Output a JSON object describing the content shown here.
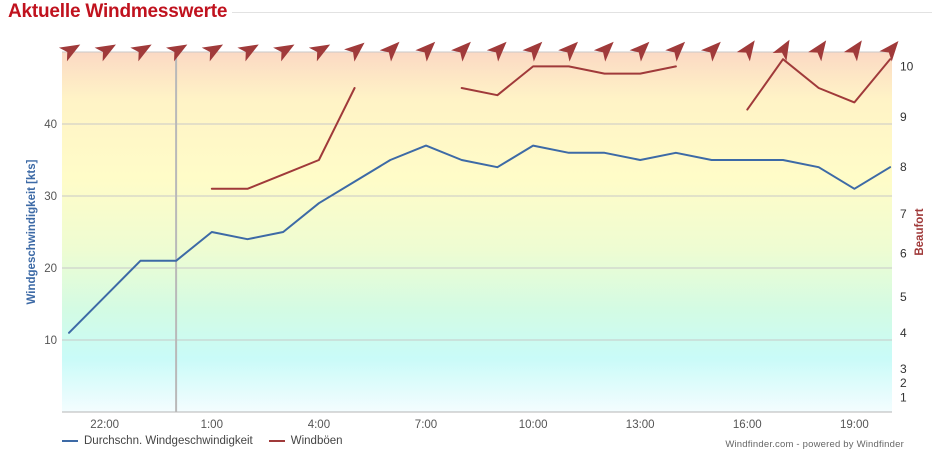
{
  "header": {
    "title": "Aktuelle Windmesswerte"
  },
  "credit": "Windfinder.com - powered by Windfinder",
  "colors": {
    "title": "#c0121e",
    "speed_line": "#3d6aa6",
    "gust_line": "#a03a3a",
    "arrow": "#a03a3a",
    "cursor_line": "#b9b9b9"
  },
  "chart_data": {
    "type": "line",
    "title": "",
    "x": [
      "21:00",
      "22:00",
      "23:00",
      "0:00",
      "1:00",
      "2:00",
      "3:00",
      "4:00",
      "5:00",
      "6:00",
      "7:00",
      "8:00",
      "9:00",
      "10:00",
      "11:00",
      "12:00",
      "13:00",
      "14:00",
      "15:00",
      "16:00",
      "17:00",
      "18:00",
      "19:00",
      "20:00"
    ],
    "x_tick_labels": [
      "22:00",
      "1:00",
      "4:00",
      "7:00",
      "10:00",
      "13:00",
      "16:00",
      "19:00"
    ],
    "ylabel": "Windgeschwindigkeit [kts]",
    "ylabel_right": "Beaufort",
    "ylim": [
      0,
      50
    ],
    "y_tick_labels": [
      "10",
      "20",
      "30",
      "40"
    ],
    "beaufort_scale": [
      {
        "label": "1",
        "kts": 2
      },
      {
        "label": "2",
        "kts": 4
      },
      {
        "label": "3",
        "kts": 6
      },
      {
        "label": "4",
        "kts": 11
      },
      {
        "label": "5",
        "kts": 16
      },
      {
        "label": "6",
        "kts": 22
      },
      {
        "label": "7",
        "kts": 27.5
      },
      {
        "label": "8",
        "kts": 34
      },
      {
        "label": "9",
        "kts": 41
      },
      {
        "label": "10",
        "kts": 48
      }
    ],
    "series": [
      {
        "name": "Durchschn. Windgeschwindigkeit",
        "values": [
          11,
          16,
          21,
          21,
          25,
          24,
          25,
          29,
          32,
          35,
          37,
          35,
          34,
          37,
          36,
          36,
          35,
          36,
          35,
          35,
          35,
          34,
          31,
          34
        ]
      },
      {
        "name": "Windböen",
        "values": [
          null,
          null,
          null,
          null,
          31,
          31,
          33,
          35,
          45,
          null,
          null,
          45,
          44,
          48,
          48,
          47,
          47,
          48,
          null,
          42,
          49,
          45,
          43,
          49
        ]
      }
    ],
    "wind_direction_deg": [
      240,
      240,
      240,
      240,
      240,
      240,
      240,
      240,
      230,
      225,
      225,
      225,
      225,
      225,
      225,
      225,
      225,
      225,
      225,
      215,
      210,
      215,
      215,
      220
    ],
    "cursor_hour": "0:00",
    "grid": true,
    "legend": "bottom-left"
  }
}
